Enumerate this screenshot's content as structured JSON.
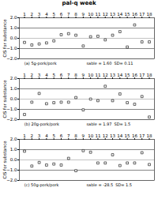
{
  "chart_data": [
    {
      "type": "scatter",
      "title": "pal-q week",
      "subtitle": "(a) 5g-pork/pork",
      "annotations": [
        "sable = 1.60  SD= 0.11"
      ],
      "ylabel": "CIS for substance",
      "x": [
        1,
        2,
        3,
        4,
        5,
        6,
        7,
        8,
        9,
        10,
        11,
        12,
        13,
        14,
        15,
        16,
        17,
        18
      ],
      "values": [
        -0.4,
        -0.65,
        -0.55,
        -0.45,
        -0.25,
        0.35,
        0.45,
        0.3,
        -0.75,
        0.15,
        0.2,
        -0.15,
        0.3,
        0.65,
        -0.85,
        1.3,
        -0.35,
        -0.35
      ],
      "xlim": [
        0.3,
        18.7
      ],
      "xticks": [
        1,
        2,
        3,
        4,
        5,
        6,
        7,
        8,
        9,
        10,
        11,
        12,
        13,
        14,
        15,
        16,
        17,
        18
      ],
      "ylim": [
        -2,
        2
      ],
      "yticks": [
        -2,
        -1,
        0,
        1,
        2
      ],
      "hlines": [
        -1.0,
        0.0,
        1.0
      ],
      "marker": "square"
    },
    {
      "type": "scatter",
      "subtitle": "(b) 20g-pork/pork",
      "annotations": [
        "sable = 1.97  SD= 1.5"
      ],
      "ylabel": "CIS for substance",
      "x": [
        1,
        2,
        3,
        4,
        5,
        6,
        7,
        8,
        9,
        10,
        11,
        12,
        13,
        14,
        15,
        16,
        17,
        18
      ],
      "values": [
        -1.5,
        -0.3,
        0.55,
        -0.45,
        -0.35,
        -0.3,
        -0.3,
        0.15,
        -1.05,
        0.0,
        -0.15,
        1.25,
        -0.15,
        0.5,
        -0.35,
        -0.5,
        0.25,
        -1.75
      ],
      "xlim": [
        0.3,
        18.7
      ],
      "xticks": [
        1,
        2,
        3,
        4,
        5,
        6,
        7,
        8,
        9,
        10,
        11,
        12,
        13,
        14,
        15,
        16,
        17,
        18
      ],
      "ylim": [
        -2,
        2
      ],
      "yticks": [
        -2,
        -1,
        0,
        1,
        2
      ],
      "hlines": [
        -1.0,
        0.0,
        1.0
      ],
      "marker": "square"
    },
    {
      "type": "scatter",
      "subtitle": "(c) 50g-pork/pork",
      "annotations": [
        "sable = -28.5  SD= 1.5"
      ],
      "ylabel": "CIS for substance",
      "x": [
        1,
        2,
        3,
        4,
        5,
        6,
        7,
        8,
        9,
        10,
        11,
        12,
        13,
        14,
        15,
        16,
        17,
        18
      ],
      "values": [
        0.85,
        -0.6,
        -0.25,
        -0.5,
        -0.4,
        -0.5,
        0.15,
        -1.05,
        0.9,
        0.75,
        -0.3,
        -0.3,
        0.5,
        -0.55,
        -0.3,
        -0.3,
        0.7,
        -0.45
      ],
      "xlim": [
        0.3,
        18.7
      ],
      "xticks": [
        1,
        2,
        3,
        4,
        5,
        6,
        7,
        8,
        9,
        10,
        11,
        12,
        13,
        14,
        15,
        16,
        17,
        18
      ],
      "ylim": [
        -2,
        2
      ],
      "yticks": [
        -2,
        -1,
        0,
        1,
        2
      ],
      "hlines": [
        -1.0,
        0.0,
        1.0
      ],
      "marker": "square"
    }
  ]
}
